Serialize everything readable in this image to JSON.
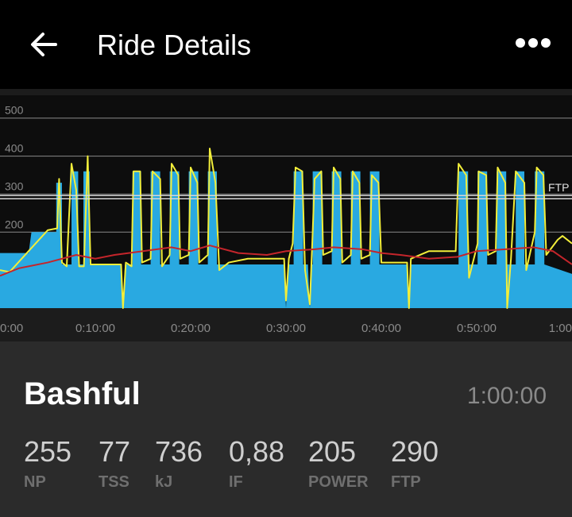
{
  "header": {
    "title": "Ride Details"
  },
  "chart_data": {
    "type": "area",
    "ylim": [
      0,
      560
    ],
    "yticks": [
      200,
      300,
      400,
      500
    ],
    "xlim": [
      0,
      60
    ],
    "xticks": [
      {
        "value": 0,
        "label": "0:00"
      },
      {
        "value": 10,
        "label": "0:10:00"
      },
      {
        "value": 20,
        "label": "0:20:00"
      },
      {
        "value": 30,
        "label": "0:30:00"
      },
      {
        "value": 40,
        "label": "0:40:00"
      },
      {
        "value": 50,
        "label": "0:50:00"
      },
      {
        "value": 60,
        "label": "1:00"
      }
    ],
    "grid": true,
    "ftp": {
      "value": 290,
      "label": "FTP"
    },
    "series": [
      {
        "color": "#29a9e1",
        "fill": true,
        "x": [
          0,
          3,
          3.3,
          5.9,
          5.9,
          6.5,
          6.5,
          7.5,
          7.5,
          8.2,
          8.2,
          8.75,
          8.75,
          9.4,
          9.4,
          12.7,
          12.9,
          13.1,
          13.9,
          13.9,
          14.8,
          14.8,
          15.8,
          15.8,
          16.8,
          16.8,
          17.8,
          17.8,
          18.8,
          18.8,
          19.8,
          19.8,
          20.8,
          20.8,
          21.8,
          21.8,
          22.75,
          22.75,
          29.8,
          30,
          30.2,
          30.8,
          30.8,
          31.8,
          31.8,
          32.3,
          32.5,
          32.7,
          32.8,
          32.8,
          33.8,
          33.8,
          34.8,
          34.8,
          35.8,
          35.8,
          36.8,
          36.8,
          37.8,
          37.8,
          38.8,
          38.8,
          39.8,
          39.8,
          42.7,
          42.9,
          43.1,
          48.1,
          48.1,
          49.1,
          49.1,
          50.1,
          50.1,
          51.1,
          51.1,
          52.1,
          52.1,
          53.1,
          53.1,
          54.1,
          54.1,
          55,
          55,
          56.1,
          56.1,
          57.1,
          57.1,
          60
        ],
        "values": [
          145,
          145,
          200,
          200,
          330,
          330,
          115,
          115,
          360,
          360,
          115,
          115,
          360,
          360,
          115,
          115,
          0,
          115,
          115,
          360,
          360,
          115,
          115,
          360,
          360,
          115,
          115,
          360,
          360,
          115,
          115,
          360,
          360,
          115,
          115,
          360,
          360,
          115,
          115,
          0,
          115,
          115,
          360,
          360,
          115,
          115,
          0,
          115,
          115,
          360,
          360,
          115,
          115,
          360,
          360,
          115,
          115,
          360,
          360,
          115,
          115,
          360,
          360,
          115,
          115,
          0,
          115,
          115,
          360,
          360,
          115,
          115,
          360,
          360,
          115,
          115,
          360,
          360,
          115,
          115,
          360,
          360,
          115,
          115,
          360,
          360,
          115,
          90
        ]
      },
      {
        "color": "#f2ee3a",
        "fill": false,
        "x": [
          0,
          1,
          3,
          5,
          6,
          6.2,
          6.5,
          7,
          7.5,
          8,
          8.3,
          8.8,
          9.2,
          9.5,
          12.7,
          12.9,
          13.2,
          13.8,
          14,
          14.7,
          14.9,
          15.8,
          16,
          16.8,
          17,
          17.8,
          18,
          18.7,
          18.9,
          19.8,
          20,
          20.7,
          20.9,
          21.8,
          22,
          22.6,
          23,
          24,
          26,
          29.8,
          30,
          30.3,
          30.7,
          31,
          31.7,
          32,
          32.5,
          32.8,
          33,
          33.7,
          33.9,
          34.8,
          35,
          35.7,
          35.9,
          36.8,
          37,
          37.7,
          37.9,
          38.8,
          39,
          39.7,
          40,
          42.7,
          42.9,
          43.1,
          45,
          47.8,
          48.1,
          48.9,
          49.2,
          50.1,
          50.2,
          51,
          51.2,
          52,
          52.2,
          53,
          53.2,
          53.6,
          54.1,
          55,
          55.2,
          56.1,
          56.3,
          57,
          57.3,
          58.5,
          59,
          60
        ],
        "values": [
          100,
          95,
          150,
          205,
          210,
          340,
          120,
          110,
          380,
          310,
          110,
          110,
          400,
          115,
          115,
          0,
          120,
          110,
          360,
          360,
          120,
          130,
          360,
          340,
          110,
          140,
          380,
          350,
          130,
          140,
          370,
          330,
          120,
          140,
          420,
          330,
          100,
          120,
          130,
          130,
          20,
          130,
          170,
          370,
          360,
          100,
          10,
          200,
          340,
          360,
          140,
          150,
          370,
          340,
          120,
          140,
          360,
          330,
          130,
          140,
          350,
          330,
          120,
          120,
          0,
          130,
          150,
          150,
          380,
          350,
          80,
          170,
          360,
          350,
          140,
          150,
          370,
          330,
          0,
          130,
          360,
          330,
          100,
          200,
          370,
          350,
          140,
          180,
          190,
          170
        ]
      },
      {
        "color": "#c4252b",
        "fill": false,
        "x": [
          0,
          2,
          5,
          8,
          10,
          12,
          15,
          18,
          20,
          22,
          25,
          28,
          30,
          33,
          35,
          38,
          40,
          42,
          45,
          48,
          50,
          53,
          56,
          58,
          60
        ],
        "values": [
          85,
          105,
          120,
          140,
          130,
          140,
          150,
          160,
          150,
          165,
          145,
          140,
          150,
          155,
          160,
          155,
          145,
          140,
          130,
          135,
          150,
          155,
          160,
          150,
          115
        ]
      }
    ]
  },
  "summary": {
    "name": "Bashful",
    "duration": "1:00:00",
    "stats": [
      {
        "value": "255",
        "label": "NP"
      },
      {
        "value": "77",
        "label": "TSS"
      },
      {
        "value": "736",
        "label": "kJ"
      },
      {
        "value": "0,88",
        "label": "IF"
      },
      {
        "value": "205",
        "label": "POWER"
      },
      {
        "value": "290",
        "label": "FTP"
      }
    ]
  }
}
